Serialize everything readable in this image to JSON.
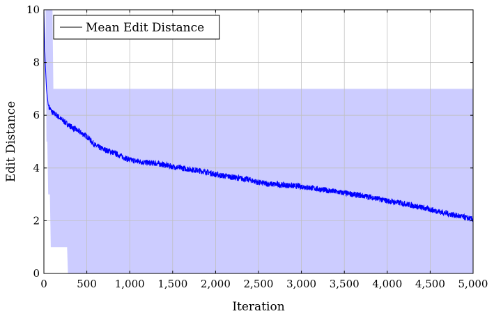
{
  "chart_data": {
    "type": "line",
    "title": "",
    "xlabel": "Iteration",
    "ylabel": "Edit Distance",
    "xlim": [
      0,
      5000
    ],
    "ylim": [
      0,
      10
    ],
    "grid": true,
    "legend_position": "top-left",
    "x_ticks": [
      0,
      500,
      1000,
      1500,
      2000,
      2500,
      3000,
      3500,
      4000,
      4500,
      5000
    ],
    "x_tick_labels": [
      "0",
      "500",
      "1,000",
      "1,500",
      "2,000",
      "2,500",
      "3,000",
      "3,500",
      "4,000",
      "4,500",
      "5,000"
    ],
    "y_ticks": [
      0,
      2,
      4,
      6,
      8,
      10
    ],
    "y_tick_labels": [
      "0",
      "2",
      "4",
      "6",
      "8",
      "10"
    ],
    "series": [
      {
        "name": "Mean Edit Distance",
        "color": "#0000ff",
        "x": [
          0,
          10,
          20,
          30,
          40,
          50,
          70,
          100,
          150,
          200,
          300,
          400,
          500,
          600,
          700,
          800,
          900,
          1000,
          1100,
          1200,
          1300,
          1400,
          1500,
          1600,
          1700,
          1800,
          1900,
          2000,
          2200,
          2400,
          2500,
          2600,
          2800,
          3000,
          3200,
          3400,
          3600,
          3800,
          4000,
          4200,
          4400,
          4600,
          4800,
          5000
        ],
        "y": [
          9.9,
          8.6,
          7.7,
          7.0,
          6.7,
          6.4,
          6.25,
          6.1,
          6.0,
          5.85,
          5.6,
          5.4,
          5.2,
          4.85,
          4.7,
          4.6,
          4.45,
          4.3,
          4.25,
          4.2,
          4.18,
          4.12,
          4.05,
          4.0,
          3.95,
          3.9,
          3.85,
          3.75,
          3.65,
          3.55,
          3.45,
          3.4,
          3.35,
          3.3,
          3.2,
          3.1,
          3.0,
          2.9,
          2.75,
          2.65,
          2.5,
          2.35,
          2.2,
          2.05
        ]
      }
    ],
    "band": {
      "color": "#ccccff",
      "x": [
        0,
        10,
        20,
        30,
        40,
        50,
        60,
        70,
        80,
        90,
        100,
        110,
        270,
        280,
        5000
      ],
      "upper": [
        10,
        10,
        10,
        10,
        10,
        10,
        10,
        10,
        10,
        10,
        10,
        7,
        7,
        7,
        7
      ],
      "lower": [
        0,
        10,
        10,
        5,
        5,
        3,
        3,
        3,
        1,
        1,
        1,
        1,
        1,
        0,
        0
      ]
    }
  }
}
